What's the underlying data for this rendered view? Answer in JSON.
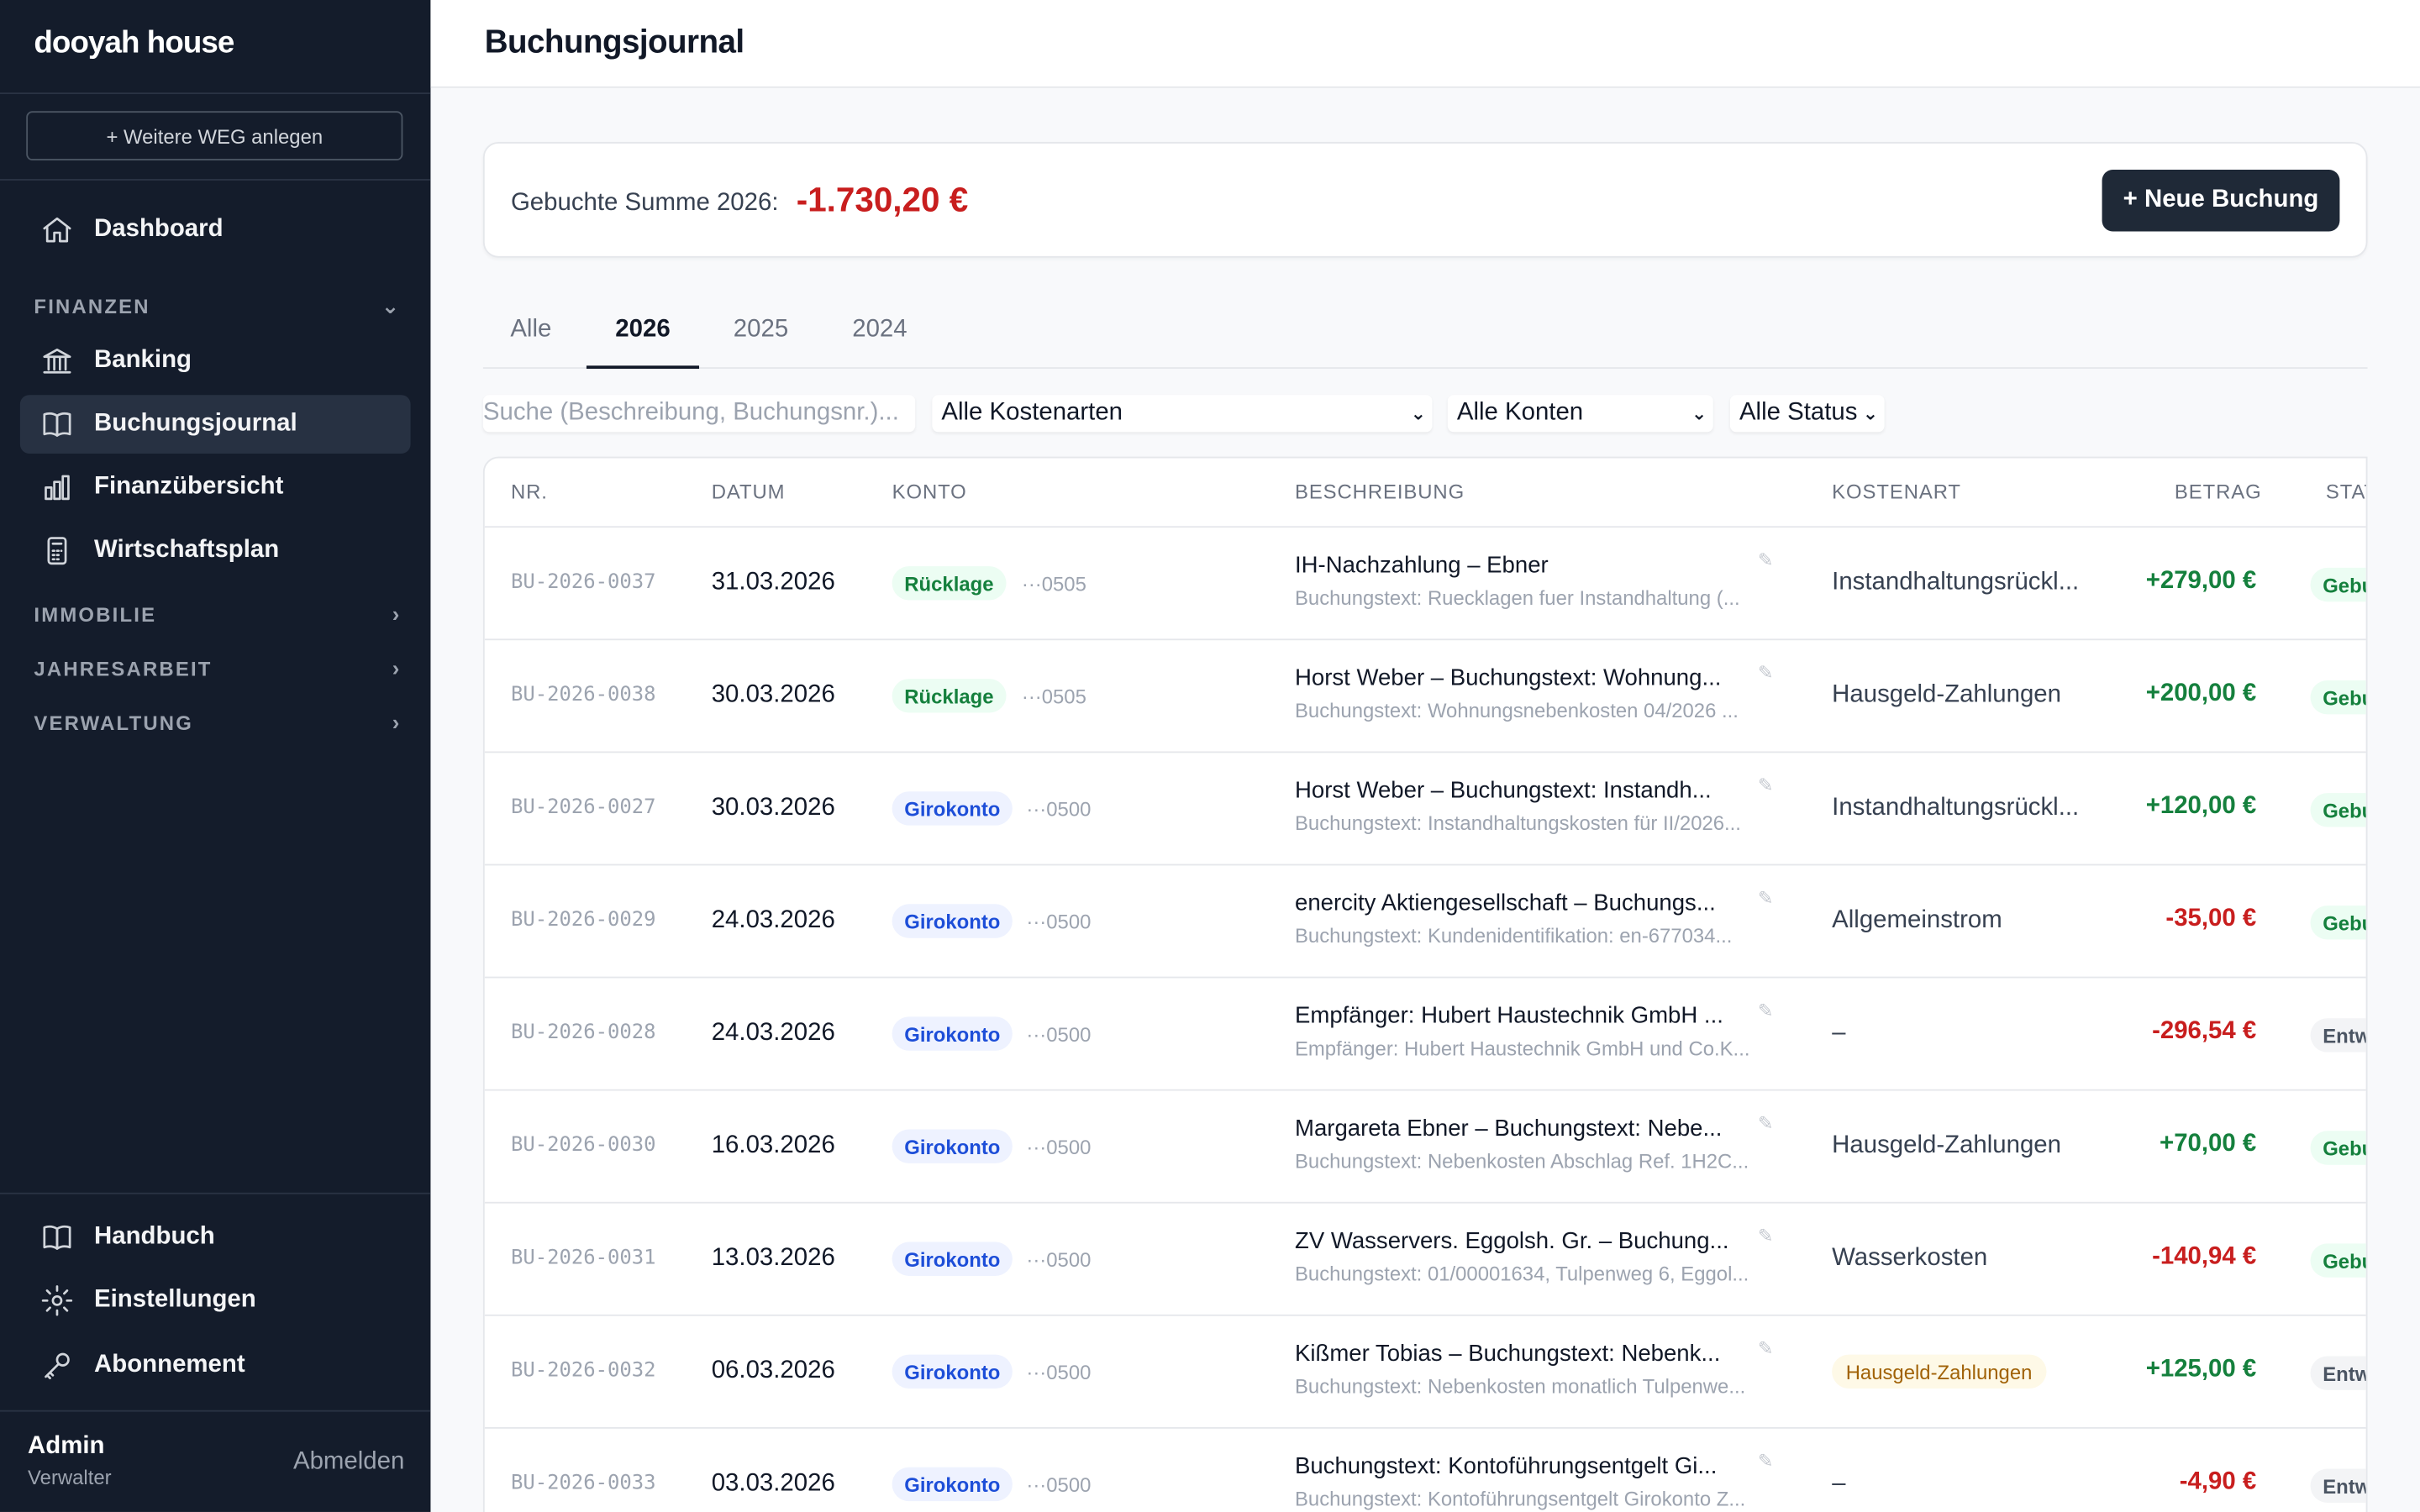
{
  "sidebar": {
    "brand": "dooyah house",
    "new_weg": "+ Weitere WEG anlegen",
    "dashboard": "Dashboard",
    "finanzen": "FINANZEN",
    "banking": "Banking",
    "buchungsjournal": "Buchungsjournal",
    "finanzuebersicht": "Finanzübersicht",
    "wirtschaftsplan": "Wirtschaftsplan",
    "immobilie": "IMMOBILIE",
    "jahresarbeit": "JAHRESARBEIT",
    "verwaltung": "VERWALTUNG",
    "handbuch": "Handbuch",
    "einstellungen": "Einstellungen",
    "abonnement": "Abonnement",
    "user_name": "Admin",
    "user_role": "Verwalter",
    "logout": "Abmelden"
  },
  "page": {
    "title": "Buchungsjournal",
    "sum_label": "Gebuchte Summe 2026:",
    "sum_value": "-1.730,20 €",
    "new_button": "+ Neue Buchung"
  },
  "tabs": [
    "Alle",
    "2026",
    "2025",
    "2024"
  ],
  "active_tab": "2026",
  "filters": {
    "search_placeholder": "Suche (Beschreibung, Buchungsnr.)...",
    "kostenarten": "Alle Kostenarten",
    "konten": "Alle Konten",
    "status": "Alle Status"
  },
  "table": {
    "headers": {
      "nr": "NR.",
      "datum": "DATUM",
      "konto": "KONTO",
      "beschreibung": "BESCHREIBUNG",
      "kostenart": "KOSTENART",
      "betrag": "BETRAG",
      "status": "STAT"
    },
    "rows": [
      {
        "nr": "BU-2026-0037",
        "date": "31.03.2026",
        "konto": "Rücklage",
        "iban": "···0505",
        "desc": "IH-Nachzahlung – Ebner",
        "sub": "Buchungstext: Ruecklagen fuer Instandhaltung (...",
        "kostenart": "Instandhaltungsrückl...",
        "amount": "+279,00 €",
        "status": "Gebu"
      },
      {
        "nr": "BU-2026-0038",
        "date": "30.03.2026",
        "konto": "Rücklage",
        "iban": "···0505",
        "desc": "Horst Weber – Buchungstext: Wohnung...",
        "sub": "Buchungstext: Wohnungsnebenkosten 04/2026 ...",
        "kostenart": "Hausgeld-Zahlungen",
        "amount": "+200,00 €",
        "status": "Gebu"
      },
      {
        "nr": "BU-2026-0027",
        "date": "30.03.2026",
        "konto": "Girokonto",
        "iban": "···0500",
        "desc": "Horst Weber – Buchungstext: Instandh...",
        "sub": "Buchungstext: Instandhaltungskosten für II/2026...",
        "kostenart": "Instandhaltungsrückl...",
        "amount": "+120,00 €",
        "status": "Gebu"
      },
      {
        "nr": "BU-2026-0029",
        "date": "24.03.2026",
        "konto": "Girokonto",
        "iban": "···0500",
        "desc": "enercity Aktiengesellschaft – Buchungs...",
        "sub": "Buchungstext: Kundenidentifikation: en-677034...",
        "kostenart": "Allgemeinstrom",
        "amount": "-35,00 €",
        "status": "Gebu"
      },
      {
        "nr": "BU-2026-0028",
        "date": "24.03.2026",
        "konto": "Girokonto",
        "iban": "···0500",
        "desc": "Empfänger: Hubert Haustechnik GmbH ...",
        "sub": "Empfänger: Hubert Haustechnik GmbH und Co.K...",
        "kostenart": "–",
        "amount": "-296,54 €",
        "status": "Entw"
      },
      {
        "nr": "BU-2026-0030",
        "date": "16.03.2026",
        "konto": "Girokonto",
        "iban": "···0500",
        "desc": "Margareta Ebner – Buchungstext: Nebe...",
        "sub": "Buchungstext: Nebenkosten Abschlag Ref. 1H2C...",
        "kostenart": "Hausgeld-Zahlungen",
        "amount": "+70,00 €",
        "status": "Gebu"
      },
      {
        "nr": "BU-2026-0031",
        "date": "13.03.2026",
        "konto": "Girokonto",
        "iban": "···0500",
        "desc": "ZV Wasservers. Eggolsh. Gr. – Buchung...",
        "sub": "Buchungstext: 01/00001634, Tulpenweg 6, Eggol...",
        "kostenart": "Wasserkosten",
        "amount": "-140,94 €",
        "status": "Gebu"
      },
      {
        "nr": "BU-2026-0032",
        "date": "06.03.2026",
        "konto": "Girokonto",
        "iban": "···0500",
        "desc": "Kißmer Tobias – Buchungstext: Nebenk...",
        "sub": "Buchungstext: Nebenkosten monatlich Tulpenwe...",
        "kostenart": "Hausgeld-Zahlungen",
        "amount": "+125,00 €",
        "status": "Entw"
      },
      {
        "nr": "BU-2026-0033",
        "date": "03.03.2026",
        "konto": "Girokonto",
        "iban": "···0500",
        "desc": "Buchungstext: Kontoführungsentgelt Gi...",
        "sub": "Buchungstext: Kontoführungsentgelt Girokonto Z...",
        "kostenart": "–",
        "amount": "-4,90 €",
        "status": "Entw"
      }
    ]
  }
}
